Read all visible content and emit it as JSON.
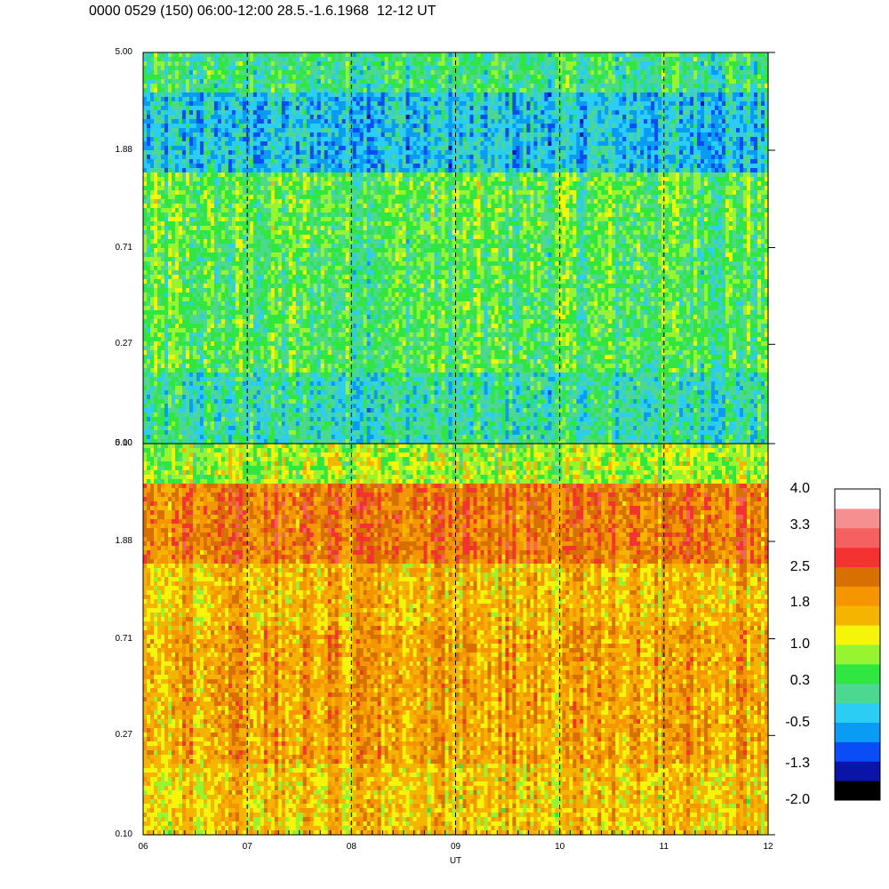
{
  "title": "0000 0529 (150) 06:00-12:00 28.5.-1.6.1968  12-12 UT",
  "chart_data": {
    "type": "heatmap",
    "title": "0000 0529 (150) 06:00-12:00 28.5.-1.6.1968  12-12 UT",
    "xlabel": "UT",
    "x_ticks": [
      "06",
      "07",
      "08",
      "09",
      "10",
      "11",
      "12"
    ],
    "xlim": [
      6,
      12
    ],
    "panels": [
      {
        "name": "upper",
        "y_ticks": [
          "5.00",
          "1.88",
          "0.71",
          "0.27",
          "0.10"
        ],
        "ylim": [
          0.1,
          5.0
        ],
        "yscale": "log",
        "dominant_levels": [
          0.0,
          1.2
        ],
        "bands": [
          {
            "y_range": [
              3.3,
              5.0
            ],
            "level": 0.2
          },
          {
            "y_range": [
              1.5,
              3.3
            ],
            "level": -0.4
          },
          {
            "y_range": [
              0.8,
              1.5
            ],
            "level": 0.5
          },
          {
            "y_range": [
              0.2,
              0.8
            ],
            "level": 0.4
          },
          {
            "y_range": [
              0.1,
              0.2
            ],
            "level": 0.0
          }
        ]
      },
      {
        "name": "lower",
        "y_ticks": [
          "5.00",
          "1.88",
          "0.71",
          "0.27",
          "0.10"
        ],
        "ylim": [
          0.1,
          5.0
        ],
        "yscale": "log",
        "dominant_levels": [
          1.0,
          2.2
        ],
        "bands": [
          {
            "y_range": [
              3.3,
              5.0
            ],
            "level": 0.9
          },
          {
            "y_range": [
              1.5,
              3.3
            ],
            "level": 2.2
          },
          {
            "y_range": [
              0.8,
              1.5
            ],
            "level": 1.6
          },
          {
            "y_range": [
              0.2,
              0.8
            ],
            "level": 1.8
          },
          {
            "y_range": [
              0.1,
              0.2
            ],
            "level": 1.5
          }
        ]
      }
    ],
    "dashed_verticals_at": [
      "07",
      "08",
      "09",
      "10",
      "11"
    ],
    "colorbar": {
      "tick_labels": [
        "4.0",
        "3.3",
        "2.5",
        "1.8",
        "1.0",
        "0.3",
        "-0.5",
        "-1.3",
        "-2.0"
      ],
      "range": [
        -2.0,
        4.0
      ],
      "colors": [
        "#000000",
        "#0a14a8",
        "#0a4cf5",
        "#0a9cf5",
        "#2ccdf5",
        "#4cd890",
        "#30e640",
        "#96f530",
        "#f5f50a",
        "#f5b400",
        "#f59600",
        "#d87000",
        "#f53232",
        "#f56060",
        "#f59090",
        "#ffffff"
      ]
    }
  }
}
